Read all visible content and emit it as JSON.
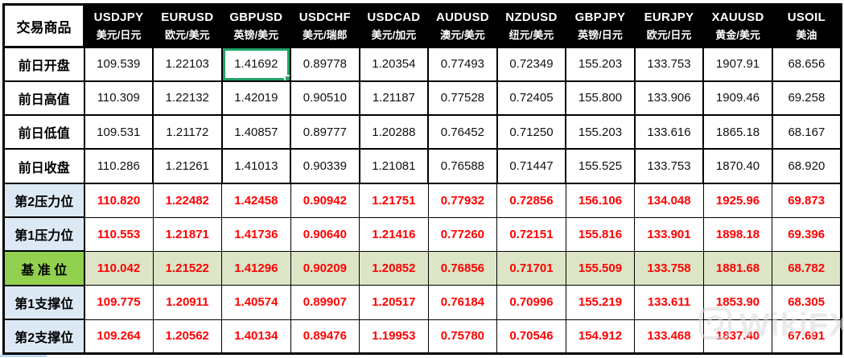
{
  "table": {
    "corner_header": "交易商品",
    "columns": [
      {
        "symbol": "USDJPY",
        "pair": "美元/日元"
      },
      {
        "symbol": "EURUSD",
        "pair": "欧元/美元"
      },
      {
        "symbol": "GBPUSD",
        "pair": "英镑/美元"
      },
      {
        "symbol": "USDCHF",
        "pair": "美元/瑞郎"
      },
      {
        "symbol": "USDCAD",
        "pair": "美元/加元"
      },
      {
        "symbol": "AUDUSD",
        "pair": "澳元/美元"
      },
      {
        "symbol": "NZDUSD",
        "pair": "纽元/美元"
      },
      {
        "symbol": "GBPJPY",
        "pair": "英镑/日元"
      },
      {
        "symbol": "EURJPY",
        "pair": "欧元/日元"
      },
      {
        "symbol": "XAUUSD",
        "pair": "黄金/美元"
      },
      {
        "symbol": "USOIL",
        "pair": "美油"
      }
    ],
    "rows": [
      {
        "label": "前日开盘",
        "type": "prev",
        "values": [
          "109.539",
          "1.22103",
          "1.41692",
          "0.89778",
          "1.20354",
          "0.77493",
          "0.72349",
          "155.203",
          "133.753",
          "1907.91",
          "68.656"
        ]
      },
      {
        "label": "前日高值",
        "type": "prev",
        "values": [
          "110.309",
          "1.22132",
          "1.42019",
          "0.90510",
          "1.21187",
          "0.77528",
          "0.72405",
          "155.800",
          "133.906",
          "1909.46",
          "69.258"
        ]
      },
      {
        "label": "前日低值",
        "type": "prev",
        "values": [
          "109.531",
          "1.21172",
          "1.40857",
          "0.89777",
          "1.20288",
          "0.76452",
          "0.71250",
          "155.203",
          "133.616",
          "1865.18",
          "68.167"
        ]
      },
      {
        "label": "前日收盘",
        "type": "prev",
        "values": [
          "110.286",
          "1.21261",
          "1.41013",
          "0.90339",
          "1.21081",
          "0.76588",
          "0.71447",
          "155.525",
          "133.753",
          "1870.40",
          "68.920"
        ]
      },
      {
        "label": "第2压力位",
        "type": "resistance",
        "values": [
          "110.820",
          "1.22482",
          "1.42458",
          "0.90942",
          "1.21751",
          "0.77932",
          "0.72856",
          "156.106",
          "134.048",
          "1925.96",
          "69.873"
        ]
      },
      {
        "label": "第1压力位",
        "type": "resistance",
        "values": [
          "110.553",
          "1.21871",
          "1.41736",
          "0.90640",
          "1.21416",
          "0.77260",
          "0.72151",
          "155.816",
          "133.901",
          "1898.18",
          "69.396"
        ]
      },
      {
        "label": "基 准 位",
        "type": "pivot",
        "values": [
          "110.042",
          "1.21522",
          "1.41296",
          "0.90209",
          "1.20852",
          "0.76856",
          "0.71701",
          "155.509",
          "133.758",
          "1881.68",
          "68.782"
        ]
      },
      {
        "label": "第1支撑位",
        "type": "support",
        "values": [
          "109.775",
          "1.20911",
          "1.40574",
          "0.89907",
          "1.20517",
          "0.76184",
          "0.70996",
          "155.219",
          "133.611",
          "1853.90",
          "68.305"
        ]
      },
      {
        "label": "第2支撑位",
        "type": "support",
        "values": [
          "109.264",
          "1.20562",
          "1.40134",
          "0.89476",
          "1.19953",
          "0.75780",
          "0.70546",
          "154.912",
          "133.468",
          "1837.40",
          "67.691"
        ]
      }
    ],
    "selection": {
      "row": 0,
      "col": 2,
      "value": "1.41692"
    }
  },
  "watermark": {
    "text": "WikiFX",
    "icon": "wikifx-logo-icon"
  },
  "colors": {
    "header_bg": "#000000",
    "header_text": "#FFFFFF",
    "label_blue_bg": "#DCE9F5",
    "pivot_label_green": "#92D050",
    "pivot_row_tint": "#DCE5C6",
    "value_red": "#FF0000",
    "selection_green": "#21A366"
  }
}
